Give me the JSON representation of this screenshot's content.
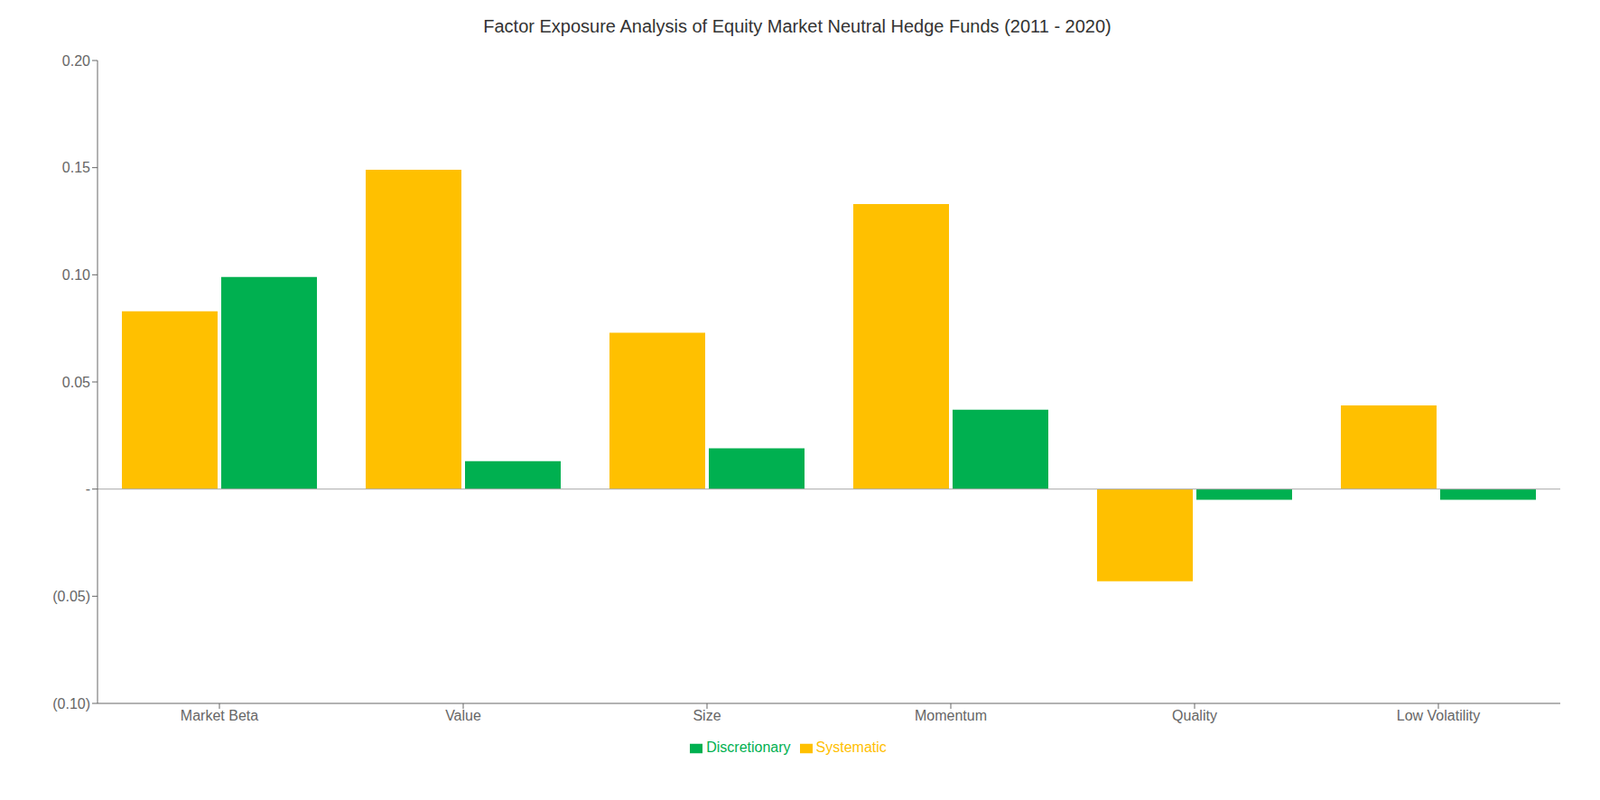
{
  "chart_data": {
    "type": "bar",
    "title": "Factor Exposure Analysis of Equity Market Neutral Hedge Funds (2011 - 2020)",
    "categories": [
      "Market Beta",
      "Value",
      "Size",
      "Momentum",
      "Quality",
      "Low Volatility"
    ],
    "series": [
      {
        "name": "Systematic",
        "color": "#FFC000",
        "values": [
          0.083,
          0.149,
          0.073,
          0.133,
          -0.043,
          0.039
        ]
      },
      {
        "name": "Discretionary",
        "color": "#00B050",
        "values": [
          0.099,
          0.013,
          0.019,
          0.037,
          -0.005,
          -0.005
        ]
      }
    ],
    "ylim": [
      -0.1,
      0.2
    ],
    "yticks": [
      {
        "value": -0.1,
        "label": "(0.10)"
      },
      {
        "value": -0.05,
        "label": "(0.05)"
      },
      {
        "value": 0.0,
        "label": "-"
      },
      {
        "value": 0.05,
        "label": "0.05"
      },
      {
        "value": 0.1,
        "label": "0.10"
      },
      {
        "value": 0.15,
        "label": "0.15"
      },
      {
        "value": 0.2,
        "label": "0.20"
      }
    ],
    "grid": false,
    "legend": "bottom"
  }
}
